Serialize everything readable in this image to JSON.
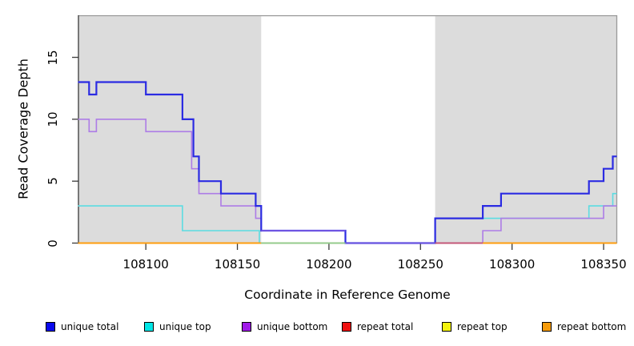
{
  "chart_data": {
    "type": "line",
    "subtype": "step-coverage",
    "title": "",
    "xlabel": "Coordinate in Reference Genome",
    "ylabel": "Read Coverage Depth",
    "x_range": [
      108063.2,
      108357.2
    ],
    "y_range": [
      0,
      18.4
    ],
    "x_ticks": [
      108100,
      108150,
      108200,
      108250,
      108300,
      108350
    ],
    "y_ticks": [
      0,
      5,
      10,
      15
    ],
    "grid": false,
    "legend_position": "bottom",
    "shaded_regions": [
      {
        "x1": 108063.2,
        "x2": 108163,
        "color": "#dcdcdc"
      },
      {
        "x1": 108258,
        "x2": 108357.2,
        "color": "#dcdcdc"
      }
    ],
    "series": [
      {
        "name": "unique total",
        "color": "#2b2be2",
        "width": 2.2,
        "steps": [
          [
            108063,
            13
          ],
          [
            108069,
            12
          ],
          [
            108073,
            13
          ],
          [
            108100,
            12
          ],
          [
            108120,
            10
          ],
          [
            108126,
            7
          ],
          [
            108129,
            5
          ],
          [
            108141,
            4
          ],
          [
            108160,
            3
          ],
          [
            108163,
            1
          ],
          [
            108209,
            0
          ],
          [
            108258,
            2
          ],
          [
            108284,
            3
          ],
          [
            108294,
            4
          ],
          [
            108342,
            5
          ],
          [
            108350,
            6
          ],
          [
            108355,
            7
          ],
          [
            108357.2,
            7
          ]
        ]
      },
      {
        "name": "unique top",
        "color": "#5bdce2",
        "width": 1.6,
        "steps": [
          [
            108063,
            3
          ],
          [
            108120,
            1
          ],
          [
            108162,
            0
          ],
          [
            108258,
            2
          ],
          [
            108342,
            3
          ],
          [
            108355,
            4
          ],
          [
            108357.2,
            4
          ]
        ]
      },
      {
        "name": "unique bottom",
        "color": "#ad7ce6",
        "width": 1.6,
        "steps": [
          [
            108063,
            10
          ],
          [
            108069,
            9
          ],
          [
            108073,
            10
          ],
          [
            108100,
            9
          ],
          [
            108125,
            6
          ],
          [
            108129,
            4
          ],
          [
            108141,
            3
          ],
          [
            108160,
            2
          ],
          [
            108163,
            1
          ],
          [
            108209,
            0
          ],
          [
            108284,
            1
          ],
          [
            108294,
            2
          ],
          [
            108350,
            3
          ],
          [
            108357.2,
            3
          ]
        ]
      },
      {
        "name": "repeat total",
        "color": "#ee1111",
        "width": 1.6,
        "steps": [
          [
            108063,
            0
          ],
          [
            108357.2,
            0
          ]
        ]
      },
      {
        "name": "repeat top",
        "color": "#f2f20e",
        "width": 1.6,
        "steps": [
          [
            108063,
            0
          ],
          [
            108357.2,
            0
          ]
        ]
      },
      {
        "name": "repeat bottom",
        "color": "#ff9d0d",
        "width": 1.8,
        "steps": [
          [
            108063,
            0
          ],
          [
            108357.2,
            0
          ]
        ]
      }
    ],
    "draw_order": [
      3,
      4,
      5,
      1,
      2,
      0
    ],
    "overlap_segments": [
      {
        "x1": 108063,
        "x2": 108163,
        "level": 0,
        "color": "#ff9d0d",
        "w": 1.8
      },
      {
        "x1": 108163,
        "x2": 108209,
        "level": 0,
        "color": "#8fce8f",
        "w": 1.6
      },
      {
        "x1": 108209,
        "x2": 108258,
        "level": 0,
        "color": "#7158de",
        "w": 1.8
      },
      {
        "x1": 108258,
        "x2": 108284,
        "level": 0,
        "color": "#c25278",
        "w": 1.8
      },
      {
        "x1": 108284,
        "x2": 108357.2,
        "level": 0,
        "color": "#ff9d0d",
        "w": 1.8
      },
      {
        "x1": 108163,
        "x2": 108209,
        "level": 1,
        "color": "#6f55e2",
        "w": 2.0
      }
    ],
    "box_color": "#9a9a9a",
    "axis_color": "#3a3a3a"
  },
  "legend": {
    "items": [
      {
        "label": "unique total",
        "color": "#0a0aee"
      },
      {
        "label": "unique top",
        "color": "#00e6e6"
      },
      {
        "label": "unique bottom",
        "color": "#a01ae8"
      },
      {
        "label": "repeat total",
        "color": "#ee1111"
      },
      {
        "label": "repeat top",
        "color": "#f2f20e"
      },
      {
        "label": "repeat bottom",
        "color": "#f59b0a"
      }
    ]
  }
}
